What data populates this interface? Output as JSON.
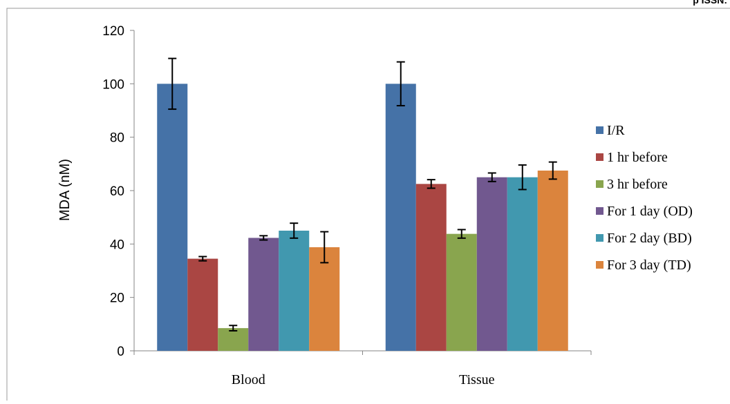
{
  "header_fragment": "p ISSN:",
  "chart_data": {
    "type": "bar",
    "title": "",
    "xlabel": "",
    "ylabel": "MDA (nM)",
    "ylim": [
      0,
      120
    ],
    "yticks": [
      0,
      20,
      40,
      60,
      80,
      100,
      120
    ],
    "grid": false,
    "legend_position": "right",
    "categories": [
      "Blood",
      "Tissue"
    ],
    "series": [
      {
        "name": "I/R",
        "color": "#4572A7",
        "values": [
          100,
          100
        ],
        "errors": [
          9.5,
          8.2
        ]
      },
      {
        "name": "1 hr before",
        "color": "#AA4643",
        "values": [
          34.5,
          62.5
        ],
        "errors": [
          0.8,
          1.6
        ]
      },
      {
        "name": "3 hr before",
        "color": "#89A54E",
        "values": [
          8.5,
          43.8
        ],
        "errors": [
          1.0,
          1.6
        ]
      },
      {
        "name": "For 1 day (OD)",
        "color": "#71588F",
        "values": [
          42.3,
          65
        ],
        "errors": [
          0.8,
          1.6
        ]
      },
      {
        "name": "For 2 day (BD)",
        "color": "#4198AF",
        "values": [
          45,
          65
        ],
        "errors": [
          2.8,
          4.6
        ]
      },
      {
        "name": "For 3 day (TD)",
        "color": "#DB843D",
        "values": [
          38.8,
          67.5
        ],
        "errors": [
          5.8,
          3.2
        ]
      }
    ]
  }
}
